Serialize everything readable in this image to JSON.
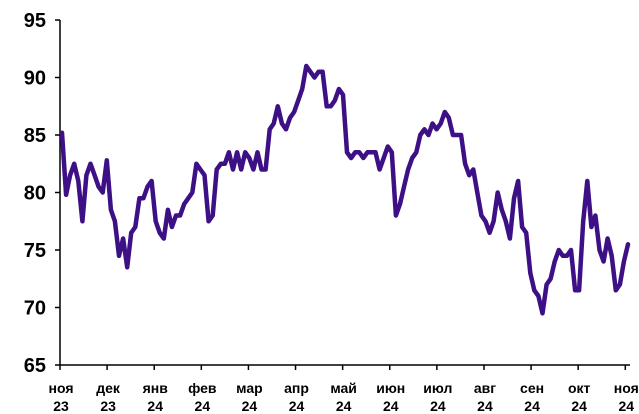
{
  "chart_data": {
    "type": "line",
    "title": "",
    "xlabel": "",
    "ylabel": "",
    "ylim": [
      65,
      95
    ],
    "yticks": [
      65,
      70,
      75,
      80,
      85,
      90,
      95
    ],
    "grid": false,
    "legend": "none",
    "line_color": "#3d1185",
    "x_tick_labels": [
      {
        "month": "ноя",
        "year": "23"
      },
      {
        "month": "дек",
        "year": "23"
      },
      {
        "month": "янв",
        "year": "24"
      },
      {
        "month": "фев",
        "year": "24"
      },
      {
        "month": "мар",
        "year": "24"
      },
      {
        "month": "апр",
        "year": "24"
      },
      {
        "month": "май",
        "year": "24"
      },
      {
        "month": "июн",
        "year": "24"
      },
      {
        "month": "июл",
        "year": "24"
      },
      {
        "month": "авг",
        "year": "24"
      },
      {
        "month": "сен",
        "year": "24"
      },
      {
        "month": "окт",
        "year": "24"
      },
      {
        "month": "ноя",
        "year": "24"
      }
    ],
    "series": [
      {
        "values": [
          85.2,
          79.8,
          81.5,
          82.5,
          81.0,
          77.5,
          81.5,
          82.5,
          81.5,
          80.5,
          80.0,
          82.8,
          78.5,
          77.5,
          74.5,
          76.0,
          73.5,
          76.5,
          77.0,
          79.5,
          79.5,
          80.5,
          81.0,
          77.5,
          76.5,
          76.0,
          78.5,
          77.0,
          78.0,
          78.0,
          79.0,
          79.5,
          80.0,
          82.5,
          82.0,
          81.5,
          77.5,
          78.0,
          82.0,
          82.5,
          82.5,
          83.5,
          82.0,
          83.5,
          82.0,
          83.5,
          83.0,
          82.0,
          83.5,
          82.0,
          82.0,
          85.5,
          86.0,
          87.5,
          86.0,
          85.5,
          86.5,
          87.0,
          88.0,
          89.0,
          91.0,
          90.5,
          90.0,
          90.5,
          90.5,
          87.5,
          87.5,
          88.0,
          89.0,
          88.5,
          83.5,
          83.0,
          83.5,
          83.5,
          83.0,
          83.5,
          83.5,
          83.5,
          82.0,
          83.0,
          84.0,
          83.5,
          78.0,
          79.0,
          80.5,
          82.0,
          83.0,
          83.5,
          85.0,
          85.5,
          85.0,
          86.0,
          85.5,
          86.0,
          87.0,
          86.5,
          85.0,
          85.0,
          85.0,
          82.5,
          81.5,
          82.0,
          80.0,
          78.0,
          77.5,
          76.5,
          77.5,
          80.0,
          78.5,
          77.5,
          76.0,
          79.5,
          81.0,
          77.0,
          76.5,
          73.0,
          71.5,
          71.0,
          69.5,
          72.0,
          72.5,
          74.0,
          75.0,
          74.5,
          74.5,
          75.0,
          71.5,
          71.5,
          77.5,
          81.0,
          77.0,
          78.0,
          75.0,
          74.0,
          76.0,
          74.5,
          71.5,
          72.0,
          74.0,
          75.5
        ]
      }
    ]
  }
}
